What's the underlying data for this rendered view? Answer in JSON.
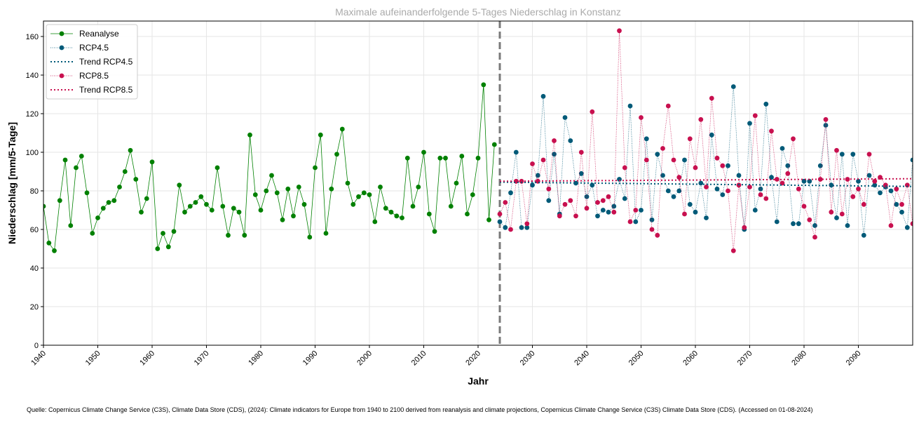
{
  "chart_data": {
    "type": "line",
    "title": "Maximale aufeinanderfolgende 5-Tages Niederschlag in Konstanz",
    "xlabel": "Jahr",
    "ylabel": "Niederschlag [mm/5-Tage]",
    "xlim": [
      1940,
      2100
    ],
    "ylim": [
      0,
      168
    ],
    "x_ticks": [
      1940,
      1950,
      1960,
      1970,
      1980,
      1990,
      2000,
      2010,
      2020,
      2030,
      2040,
      2050,
      2060,
      2070,
      2080,
      2090
    ],
    "y_ticks": [
      0,
      20,
      40,
      60,
      80,
      100,
      120,
      140,
      160
    ],
    "grid": true,
    "legend_position": "top-left",
    "divider_year": 2024,
    "series": [
      {
        "name": "Reanalyse",
        "color": "#008000",
        "style": "solid",
        "x": [
          1940,
          1941,
          1942,
          1943,
          1944,
          1945,
          1946,
          1947,
          1948,
          1949,
          1950,
          1951,
          1952,
          1953,
          1954,
          1955,
          1956,
          1957,
          1958,
          1959,
          1960,
          1961,
          1962,
          1963,
          1964,
          1965,
          1966,
          1967,
          1968,
          1969,
          1970,
          1971,
          1972,
          1973,
          1974,
          1975,
          1976,
          1977,
          1978,
          1979,
          1980,
          1981,
          1982,
          1983,
          1984,
          1985,
          1986,
          1987,
          1988,
          1989,
          1990,
          1991,
          1992,
          1993,
          1994,
          1995,
          1996,
          1997,
          1998,
          1999,
          2000,
          2001,
          2002,
          2003,
          2004,
          2005,
          2006,
          2007,
          2008,
          2009,
          2010,
          2011,
          2012,
          2013,
          2014,
          2015,
          2016,
          2017,
          2018,
          2019,
          2020,
          2021,
          2022,
          2023
        ],
        "values": [
          72,
          53,
          49,
          75,
          96,
          62,
          92,
          98,
          79,
          58,
          66,
          71,
          74,
          75,
          82,
          90,
          101,
          86,
          69,
          76,
          95,
          50,
          58,
          51,
          59,
          83,
          69,
          72,
          74,
          77,
          73,
          70,
          92,
          72,
          57,
          71,
          69,
          57,
          109,
          78,
          70,
          80,
          88,
          79,
          65,
          81,
          67,
          82,
          73,
          56,
          92,
          109,
          58,
          81,
          99,
          112,
          84,
          73,
          77,
          79,
          78,
          64,
          82,
          71,
          69,
          67,
          66,
          97,
          72,
          82,
          100,
          68,
          59,
          97,
          97,
          72,
          84,
          98,
          68,
          78,
          97,
          135,
          65,
          104
        ]
      },
      {
        "name": "RCP4.5",
        "color": "#005a78",
        "style": "dotted",
        "x": [
          2024,
          2025,
          2026,
          2027,
          2028,
          2029,
          2030,
          2031,
          2032,
          2033,
          2034,
          2035,
          2036,
          2037,
          2038,
          2039,
          2040,
          2041,
          2042,
          2043,
          2044,
          2045,
          2046,
          2047,
          2048,
          2049,
          2050,
          2051,
          2052,
          2053,
          2054,
          2055,
          2056,
          2057,
          2058,
          2059,
          2060,
          2061,
          2062,
          2063,
          2064,
          2065,
          2066,
          2067,
          2068,
          2069,
          2070,
          2071,
          2072,
          2073,
          2074,
          2075,
          2076,
          2077,
          2078,
          2079,
          2080,
          2081,
          2082,
          2083,
          2084,
          2085,
          2086,
          2087,
          2088,
          2089,
          2090,
          2091,
          2092,
          2093,
          2094,
          2095,
          2096,
          2097,
          2098,
          2099,
          2100
        ],
        "values": [
          64,
          61,
          79,
          100,
          61,
          61,
          83,
          88,
          129,
          75,
          99,
          68,
          118,
          106,
          84,
          89,
          77,
          83,
          67,
          70,
          69,
          72,
          86,
          76,
          124,
          64,
          70,
          107,
          65,
          99,
          88,
          80,
          77,
          80,
          96,
          73,
          69,
          84,
          66,
          109,
          81,
          78,
          93,
          134,
          88,
          60,
          115,
          70,
          81,
          125,
          87,
          64,
          102,
          93,
          63,
          63,
          85,
          85,
          62,
          93,
          114,
          83,
          66,
          99,
          62,
          99,
          85,
          57,
          88,
          83,
          79,
          82,
          80,
          73,
          69,
          61,
          96
        ]
      },
      {
        "name": "Trend RCP4.5",
        "color": "#005a78",
        "style": "trend",
        "x": [
          2024,
          2100
        ],
        "values": [
          84.5,
          82.3
        ]
      },
      {
        "name": "RCP8.5",
        "color": "#c8104f",
        "style": "dotted",
        "x": [
          2024,
          2025,
          2026,
          2027,
          2028,
          2029,
          2030,
          2031,
          2032,
          2033,
          2034,
          2035,
          2036,
          2037,
          2038,
          2039,
          2040,
          2041,
          2042,
          2043,
          2044,
          2045,
          2046,
          2047,
          2048,
          2049,
          2050,
          2051,
          2052,
          2053,
          2054,
          2055,
          2056,
          2057,
          2058,
          2059,
          2060,
          2061,
          2062,
          2063,
          2064,
          2065,
          2066,
          2067,
          2068,
          2069,
          2070,
          2071,
          2072,
          2073,
          2074,
          2075,
          2076,
          2077,
          2078,
          2079,
          2080,
          2081,
          2082,
          2083,
          2084,
          2085,
          2086,
          2087,
          2088,
          2089,
          2090,
          2091,
          2092,
          2093,
          2094,
          2095,
          2096,
          2097,
          2098,
          2099,
          2100
        ],
        "values": [
          68,
          74,
          60,
          85,
          85,
          63,
          94,
          85,
          96,
          81,
          106,
          67,
          73,
          75,
          67,
          100,
          71,
          121,
          74,
          75,
          77,
          69,
          163,
          92,
          64,
          70,
          118,
          96,
          60,
          57,
          102,
          124,
          96,
          87,
          68,
          107,
          92,
          117,
          82,
          128,
          97,
          93,
          80,
          49,
          83,
          61,
          82,
          119,
          78,
          76,
          111,
          86,
          84,
          89,
          107,
          81,
          72,
          65,
          56,
          86,
          117,
          69,
          101,
          68,
          86,
          77,
          81,
          73,
          99,
          85,
          87,
          83,
          62,
          81,
          73,
          83,
          63
        ]
      },
      {
        "name": "Trend RCP8.5",
        "color": "#c8104f",
        "style": "trend",
        "x": [
          2024,
          2100
        ],
        "values": [
          85.0,
          86.3
        ]
      }
    ]
  },
  "source_text": "Quelle: Copernicus Climate Change Service (C3S), Climate Data Store (CDS), (2024): Climate indicators for Europe from 1940 to 2100 derived from reanalysis and climate projections, Copernicus Climate Change Service (C3S) Climate Data Store (CDS). (Accessed on 01-08-2024)"
}
